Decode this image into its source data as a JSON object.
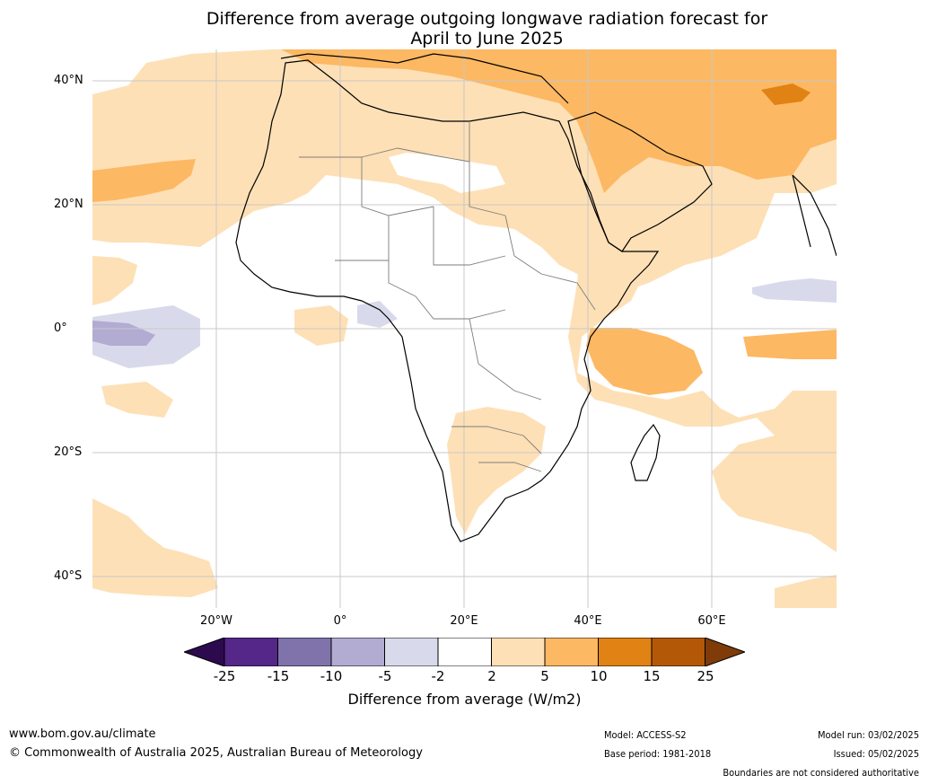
{
  "title": {
    "line1": "Difference from average outgoing longwave radiation forecast for",
    "line2": "April to June 2025"
  },
  "map": {
    "lat_labels": [
      "40°N",
      "20°N",
      "0°",
      "20°S",
      "40°S"
    ],
    "lon_labels": [
      "20°W",
      "0°",
      "20°E",
      "40°E",
      "60°E"
    ],
    "colors": {
      "neg25": "#2d0a4e",
      "neg15_25": "#542788",
      "neg10_15": "#8073ac",
      "neg5_10": "#b2abd2",
      "neg2_5": "#d8daeb",
      "neutral": "#ffffff",
      "pos2_5": "#fee0b6",
      "pos5_10": "#fdb863",
      "pos10_15": "#e08214",
      "pos15_25": "#b35806",
      "pos25": "#7f3b08"
    }
  },
  "colorbar": {
    "ticks": [
      "-25",
      "-15",
      "-10",
      "-5",
      "-2",
      "2",
      "5",
      "10",
      "15",
      "25"
    ],
    "label": "Difference from average (W/m2)"
  },
  "footer": {
    "website": "www.bom.gov.au/climate",
    "copyright": "© Commonwealth of Australia 2025, Australian Bureau of Meteorology",
    "model": "Model: ACCESS-S2",
    "base_period": "Base period: 1981-2018",
    "model_run": "Model run: 03/02/2025",
    "issued": "Issued: 05/02/2025",
    "disclaimer": "Boundaries are not considered authoritative"
  }
}
